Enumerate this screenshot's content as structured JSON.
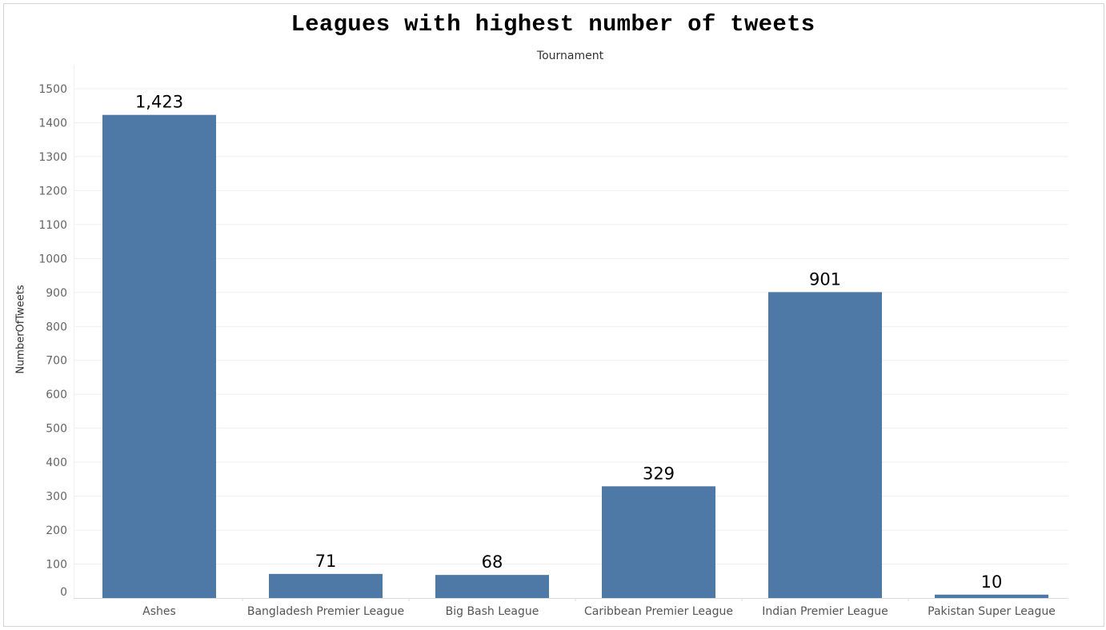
{
  "chart_data": {
    "type": "bar",
    "title": "Leagues with highest number of tweets",
    "column_header": "Tournament",
    "xlabel": "",
    "ylabel": "NumberOfTweets",
    "categories": [
      "Ashes",
      "Bangladesh Premier League",
      "Big Bash League",
      "Caribbean Premier League",
      "Indian Premier League",
      "Pakistan Super League"
    ],
    "values": [
      1423,
      71,
      68,
      329,
      901,
      10
    ],
    "value_labels": [
      "1,423",
      "71",
      "68",
      "329",
      "901",
      "10"
    ],
    "ylim": [
      0,
      1500
    ],
    "yticks": [
      0,
      100,
      200,
      300,
      400,
      500,
      600,
      700,
      800,
      900,
      1000,
      1100,
      1200,
      1300,
      1400,
      1500
    ],
    "grid": true,
    "bar_color": "#4e79a7"
  }
}
